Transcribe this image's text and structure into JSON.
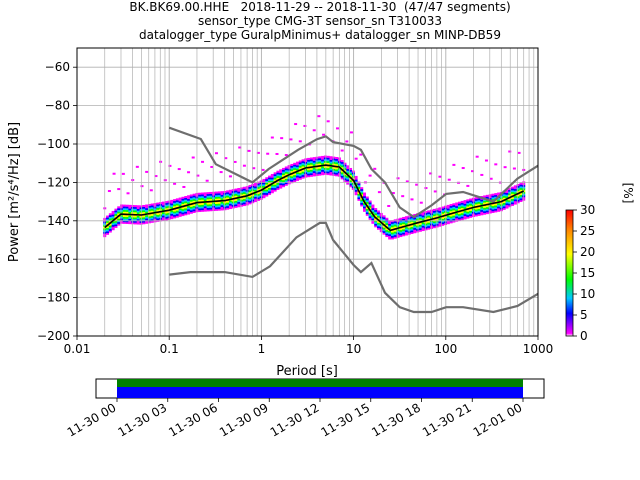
{
  "title_lines": [
    "BK.BK69.00.HHE   2018-11-29 -- 2018-11-30  (47/47 segments)",
    "sensor_type CMG-3T sensor_sn T310033",
    "datalogger_type GuralpMinimus+ datalogger_sn MINP-DB59"
  ],
  "chart_data": {
    "type": "heatmap",
    "xlabel": "Period [s]",
    "ylabel": "Power [m²/s⁴/Hz] [dB]",
    "xscale": "log",
    "xlim": [
      0.01,
      1000
    ],
    "ylim": [
      -200,
      -50
    ],
    "xticks": [
      0.01,
      0.1,
      1,
      10,
      100,
      1000
    ],
    "xtick_labels": [
      "0.01",
      "0.1",
      "1",
      "10",
      "100",
      "1000"
    ],
    "yticks": [
      -200,
      -180,
      -160,
      -140,
      -120,
      -100,
      -80,
      -60
    ],
    "ytick_labels": [
      "−200",
      "−180",
      "−160",
      "−140",
      "−120",
      "−100",
      "−80",
      "−60"
    ],
    "grid": true,
    "colorbar": {
      "label": "[%]",
      "range": [
        0,
        30
      ],
      "ticks": [
        0,
        5,
        10,
        15,
        20,
        25,
        30
      ],
      "tick_labels": [
        "0",
        "5",
        "10",
        "15",
        "20",
        "25",
        "30"
      ]
    },
    "series": [
      {
        "name": "NHNM",
        "color": "#6e6e6e",
        "points": [
          [
            0.1,
            -91.5
          ],
          [
            0.22,
            -97.4
          ],
          [
            0.32,
            -110.5
          ],
          [
            0.8,
            -120
          ],
          [
            1.2,
            -113
          ],
          [
            2.5,
            -103
          ],
          [
            4.0,
            -97.5
          ],
          [
            5.0,
            -96
          ],
          [
            6.0,
            -99
          ],
          [
            10,
            -101
          ],
          [
            12,
            -103
          ],
          [
            15.6,
            -113
          ],
          [
            21.9,
            -120
          ],
          [
            31.6,
            -133
          ],
          [
            45,
            -138
          ],
          [
            70,
            -132
          ],
          [
            101,
            -126
          ],
          [
            154,
            -125
          ],
          [
            328,
            -130
          ],
          [
            600,
            -118
          ],
          [
            1000,
            -111.3
          ]
        ]
      },
      {
        "name": "NLNM",
        "color": "#6e6e6e",
        "points": [
          [
            0.1,
            -168
          ],
          [
            0.17,
            -166.7
          ],
          [
            0.4,
            -166.7
          ],
          [
            0.8,
            -169.2
          ],
          [
            1.24,
            -163.7
          ],
          [
            2.4,
            -148.6
          ],
          [
            4.3,
            -141.1
          ],
          [
            5.0,
            -141.1
          ],
          [
            6.0,
            -150
          ],
          [
            10,
            -163
          ],
          [
            12,
            -166.7
          ],
          [
            15.6,
            -162
          ],
          [
            21.9,
            -177.5
          ],
          [
            31.6,
            -185
          ],
          [
            45,
            -187.5
          ],
          [
            70,
            -187.5
          ],
          [
            101,
            -185
          ],
          [
            154,
            -185
          ],
          [
            328,
            -187.5
          ],
          [
            600,
            -184.4
          ],
          [
            1000,
            -178
          ]
        ]
      },
      {
        "name": "mean",
        "color": "#000000",
        "points": [
          [
            0.02,
            -143.5
          ],
          [
            0.03,
            -136.5
          ],
          [
            0.05,
            -137
          ],
          [
            0.1,
            -134.5
          ],
          [
            0.2,
            -130.5
          ],
          [
            0.4,
            -129.5
          ],
          [
            0.7,
            -127
          ],
          [
            1.0,
            -124
          ],
          [
            1.5,
            -119
          ],
          [
            2.0,
            -116
          ],
          [
            3.0,
            -112.5
          ],
          [
            5.0,
            -111
          ],
          [
            7.0,
            -112
          ],
          [
            10,
            -119
          ],
          [
            13,
            -130
          ],
          [
            17,
            -138
          ],
          [
            25,
            -145
          ],
          [
            35,
            -143
          ],
          [
            50,
            -141
          ],
          [
            80,
            -138.5
          ],
          [
            120,
            -136
          ],
          [
            200,
            -133
          ],
          [
            400,
            -130
          ],
          [
            600,
            -126
          ],
          [
            700,
            -124.5
          ]
        ]
      }
    ],
    "data_coverage": {
      "x_tick_labels": [
        "11-30 00",
        "11-30 03",
        "11-30 06",
        "11-30 09",
        "11-30 12",
        "11-30 15",
        "11-30 18",
        "11-30 21",
        "12-01 00"
      ],
      "coverage": "full",
      "colors": [
        "#008000",
        "#0000ff"
      ]
    }
  }
}
